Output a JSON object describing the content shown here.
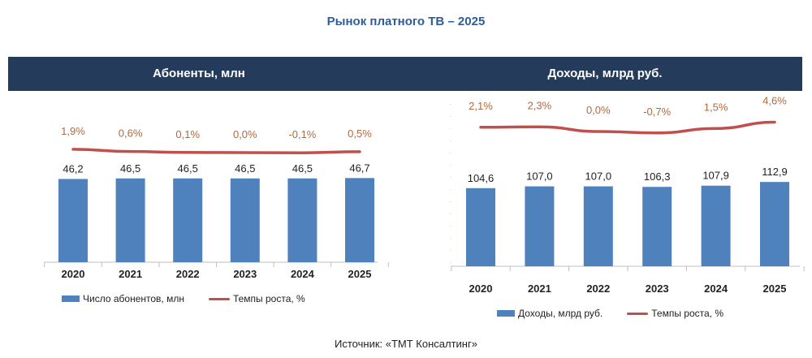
{
  "title": "Рынок платного ТВ – 2025",
  "source": "Источник: «ТМТ Консалтинг»",
  "colors": {
    "bar": "#4f81bd",
    "line": "#c0504d",
    "header": "#243b5c",
    "title": "#2e5c9a"
  },
  "chart_data": [
    {
      "type": "bar",
      "title": "Абоненты, млн",
      "categories": [
        "2020",
        "2021",
        "2022",
        "2023",
        "2024",
        "2025"
      ],
      "series": [
        {
          "name": "Число абонентов, млн",
          "type": "bar",
          "values": [
            46.2,
            46.5,
            46.5,
            46.5,
            46.5,
            46.7
          ],
          "labels": [
            "46,2",
            "46,5",
            "46,5",
            "46,5",
            "46,5",
            "46,7"
          ]
        },
        {
          "name": "Темпы роста, %",
          "type": "line",
          "values": [
            1.9,
            0.6,
            0.1,
            0.0,
            -0.1,
            0.5
          ],
          "labels": [
            "1,9%",
            "0,6%",
            "0,1%",
            "0,0%",
            "-0,1%",
            "0,5%"
          ]
        }
      ],
      "legend": "bottom"
    },
    {
      "type": "bar",
      "title": "Доходы, млрд руб.",
      "categories": [
        "2020",
        "2021",
        "2022",
        "2023",
        "2024",
        "2025"
      ],
      "series": [
        {
          "name": "Доходы, млрд руб.",
          "type": "bar",
          "values": [
            104.6,
            107.0,
            107.0,
            106.3,
            107.9,
            112.9
          ],
          "labels": [
            "104,6",
            "107,0",
            "107,0",
            "106,3",
            "107,9",
            "112,9"
          ]
        },
        {
          "name": "Темпы роста, %",
          "type": "line",
          "values": [
            2.1,
            2.3,
            0.0,
            -0.7,
            1.5,
            4.6
          ],
          "labels": [
            "2,1%",
            "2,3%",
            "0,0%",
            "-0,7%",
            "1,5%",
            "4,6%"
          ]
        }
      ],
      "legend": "bottom"
    }
  ]
}
